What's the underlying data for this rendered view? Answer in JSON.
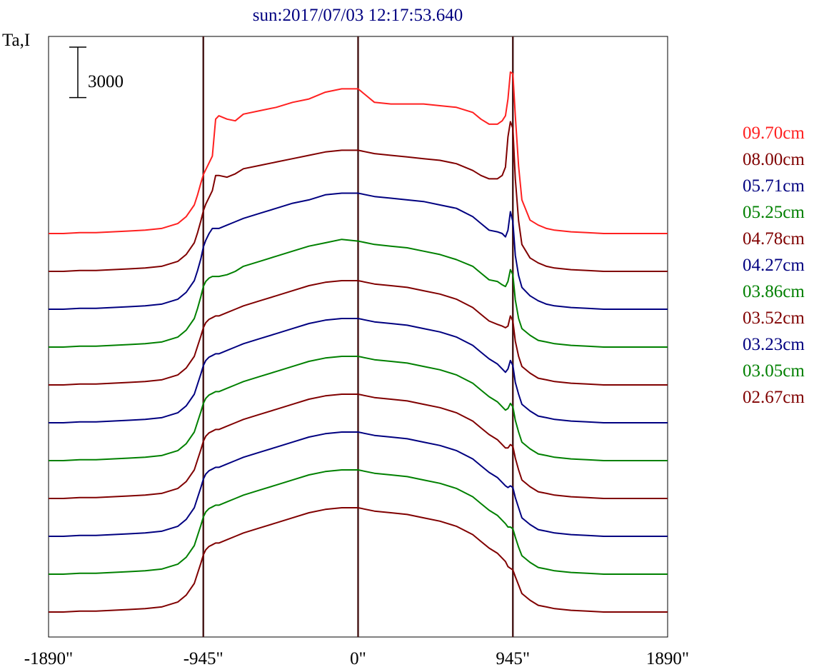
{
  "chart_data": {
    "type": "line",
    "title": "sun:2017/07/03 12:17:53.640",
    "ylabel": "Ta,I",
    "scale_bar_label": "3000",
    "scale_bar_value": 3000,
    "x_ticks": [
      {
        "value": -1890,
        "label": "-1890\""
      },
      {
        "value": -945,
        "label": "-945\""
      },
      {
        "value": 0,
        "label": "0\""
      },
      {
        "value": 945,
        "label": "945\""
      },
      {
        "value": 1890,
        "label": "1890\""
      }
    ],
    "xlim": [
      -1890,
      1890
    ],
    "vertical_lines": [
      -945,
      0,
      945
    ],
    "stacked_offsets": true,
    "series_offset_step": 2250,
    "x": [
      -1890,
      -1800,
      -1700,
      -1600,
      -1500,
      -1400,
      -1300,
      -1200,
      -1100,
      -1050,
      -1000,
      -980,
      -960,
      -945,
      -930,
      -910,
      -890,
      -870,
      -850,
      -800,
      -750,
      -700,
      -600,
      -500,
      -400,
      -300,
      -200,
      -100,
      0,
      100,
      200,
      300,
      400,
      500,
      600,
      700,
      750,
      800,
      850,
      880,
      900,
      915,
      930,
      945,
      960,
      980,
      1000,
      1050,
      1100,
      1150,
      1200,
      1300,
      1400,
      1500,
      1600,
      1700,
      1800,
      1890
    ],
    "series": [
      {
        "name": "09.70cm",
        "color": "#ff2020",
        "values": [
          0,
          0,
          50,
          50,
          100,
          150,
          200,
          300,
          600,
          1000,
          1700,
          2300,
          3000,
          3500,
          3800,
          4200,
          4600,
          6800,
          7000,
          6800,
          6700,
          7100,
          7300,
          7500,
          7800,
          8000,
          8400,
          8600,
          8600,
          7800,
          7700,
          7700,
          7700,
          7600,
          7500,
          7200,
          6800,
          6500,
          6500,
          6700,
          7000,
          8000,
          9600,
          9500,
          7000,
          4000,
          2000,
          800,
          500,
          300,
          200,
          100,
          50,
          0,
          0,
          0,
          0,
          0
        ]
      },
      {
        "name": "08.00cm",
        "color": "#800000",
        "values": [
          0,
          0,
          50,
          50,
          100,
          150,
          200,
          300,
          600,
          1000,
          1700,
          2300,
          3000,
          3600,
          4000,
          4400,
          4800,
          5700,
          5700,
          5600,
          5800,
          6100,
          6300,
          6500,
          6700,
          6900,
          7100,
          7200,
          7200,
          7000,
          6900,
          6800,
          6700,
          6600,
          6400,
          6000,
          5700,
          5500,
          5500,
          5700,
          6200,
          8000,
          8900,
          8500,
          5500,
          3000,
          1600,
          800,
          500,
          300,
          200,
          100,
          50,
          0,
          0,
          0,
          0,
          0
        ]
      },
      {
        "name": "05.71cm",
        "color": "#000080",
        "values": [
          0,
          0,
          50,
          50,
          100,
          150,
          200,
          300,
          600,
          1000,
          1700,
          2300,
          3000,
          3700,
          4100,
          4500,
          4800,
          4800,
          4800,
          5000,
          5200,
          5400,
          5700,
          6000,
          6300,
          6500,
          6800,
          6900,
          6900,
          6700,
          6600,
          6500,
          6400,
          6200,
          6000,
          5500,
          5100,
          4700,
          4600,
          4500,
          4300,
          4700,
          5800,
          5200,
          3200,
          2000,
          1300,
          800,
          500,
          300,
          200,
          100,
          50,
          0,
          0,
          0,
          0,
          0
        ]
      },
      {
        "name": "05.25cm",
        "color": "#008000",
        "values": [
          0,
          0,
          50,
          50,
          100,
          150,
          200,
          300,
          600,
          1000,
          1700,
          2300,
          3000,
          3600,
          3900,
          4100,
          4200,
          4200,
          4200,
          4300,
          4500,
          4800,
          5100,
          5400,
          5700,
          6000,
          6200,
          6400,
          6300,
          6100,
          6000,
          5900,
          5700,
          5500,
          5200,
          4800,
          4400,
          4000,
          3900,
          3700,
          3600,
          3900,
          4600,
          4300,
          2800,
          1700,
          1100,
          700,
          400,
          300,
          200,
          100,
          50,
          0,
          0,
          0,
          0,
          0
        ]
      },
      {
        "name": "04.78cm",
        "color": "#800000",
        "values": [
          0,
          0,
          50,
          50,
          100,
          150,
          200,
          300,
          600,
          1000,
          1700,
          2300,
          2900,
          3400,
          3700,
          3900,
          4000,
          4100,
          4100,
          4300,
          4500,
          4700,
          5000,
          5300,
          5600,
          5900,
          6100,
          6200,
          6200,
          6000,
          5900,
          5800,
          5600,
          5400,
          5100,
          4600,
          4200,
          3800,
          3600,
          3500,
          3400,
          3500,
          4100,
          3800,
          2600,
          1700,
          1100,
          700,
          400,
          300,
          200,
          100,
          50,
          0,
          0,
          0,
          0,
          0
        ]
      },
      {
        "name": "04.27cm",
        "color": "#000080",
        "values": [
          0,
          0,
          50,
          50,
          100,
          150,
          200,
          300,
          600,
          1000,
          1700,
          2300,
          2900,
          3400,
          3700,
          3900,
          4000,
          4100,
          4100,
          4300,
          4500,
          4700,
          5000,
          5300,
          5600,
          5900,
          6100,
          6200,
          6200,
          6000,
          5900,
          5800,
          5600,
          5400,
          5100,
          4600,
          4200,
          3800,
          3500,
          3200,
          3000,
          3200,
          3700,
          3400,
          2400,
          1700,
          1100,
          700,
          400,
          300,
          200,
          100,
          50,
          0,
          0,
          0,
          0,
          0
        ]
      },
      {
        "name": "03.86cm",
        "color": "#008000",
        "values": [
          0,
          0,
          50,
          50,
          100,
          150,
          200,
          300,
          600,
          1000,
          1700,
          2300,
          2900,
          3400,
          3700,
          3900,
          4000,
          4100,
          4100,
          4300,
          4500,
          4700,
          5000,
          5300,
          5600,
          5900,
          6100,
          6200,
          6200,
          6000,
          5900,
          5800,
          5600,
          5400,
          5100,
          4600,
          4200,
          3800,
          3500,
          3200,
          3000,
          3100,
          3400,
          3200,
          2400,
          1700,
          1100,
          700,
          400,
          300,
          200,
          100,
          50,
          0,
          0,
          0,
          0,
          0
        ]
      },
      {
        "name": "03.52cm",
        "color": "#800000",
        "values": [
          0,
          0,
          50,
          50,
          100,
          150,
          200,
          300,
          600,
          1000,
          1700,
          2300,
          2900,
          3400,
          3700,
          3900,
          4000,
          4100,
          4100,
          4300,
          4500,
          4700,
          5000,
          5300,
          5600,
          5900,
          6100,
          6200,
          6200,
          6000,
          5900,
          5800,
          5600,
          5400,
          5100,
          4600,
          4200,
          3800,
          3500,
          3200,
          3000,
          3000,
          3200,
          3100,
          2400,
          1700,
          1100,
          700,
          400,
          300,
          200,
          100,
          50,
          0,
          0,
          0,
          0,
          0
        ]
      },
      {
        "name": "03.23cm",
        "color": "#000080",
        "values": [
          0,
          0,
          50,
          50,
          100,
          150,
          200,
          300,
          600,
          1000,
          1700,
          2300,
          2900,
          3400,
          3700,
          3900,
          4000,
          4100,
          4100,
          4300,
          4500,
          4700,
          5000,
          5300,
          5600,
          5900,
          6100,
          6200,
          6200,
          6000,
          5900,
          5800,
          5600,
          5400,
          5100,
          4600,
          4200,
          3800,
          3500,
          3200,
          3000,
          2900,
          3000,
          2900,
          2300,
          1700,
          1100,
          700,
          400,
          300,
          200,
          100,
          50,
          0,
          0,
          0,
          0,
          0
        ]
      },
      {
        "name": "03.05cm",
        "color": "#008000",
        "values": [
          0,
          0,
          50,
          50,
          100,
          150,
          200,
          300,
          600,
          1000,
          1700,
          2300,
          2900,
          3400,
          3700,
          3900,
          4000,
          4100,
          4100,
          4300,
          4500,
          4700,
          5000,
          5300,
          5600,
          5900,
          6100,
          6200,
          6200,
          6000,
          5900,
          5800,
          5600,
          5400,
          5100,
          4600,
          4200,
          3800,
          3500,
          3200,
          3000,
          2800,
          2800,
          2700,
          2200,
          1600,
          1100,
          700,
          400,
          300,
          200,
          100,
          50,
          0,
          0,
          0,
          0,
          0
        ]
      },
      {
        "name": "02.67cm",
        "color": "#800000",
        "values": [
          0,
          0,
          50,
          50,
          100,
          150,
          200,
          300,
          600,
          1000,
          1700,
          2300,
          2900,
          3400,
          3700,
          3900,
          4000,
          4100,
          4100,
          4300,
          4500,
          4700,
          5000,
          5300,
          5600,
          5900,
          6100,
          6200,
          6200,
          6000,
          5900,
          5800,
          5600,
          5400,
          5100,
          4600,
          4200,
          3800,
          3500,
          3200,
          3000,
          2700,
          2600,
          2500,
          2100,
          1600,
          1100,
          700,
          400,
          300,
          200,
          100,
          50,
          0,
          0,
          0,
          0,
          0
        ]
      }
    ]
  }
}
